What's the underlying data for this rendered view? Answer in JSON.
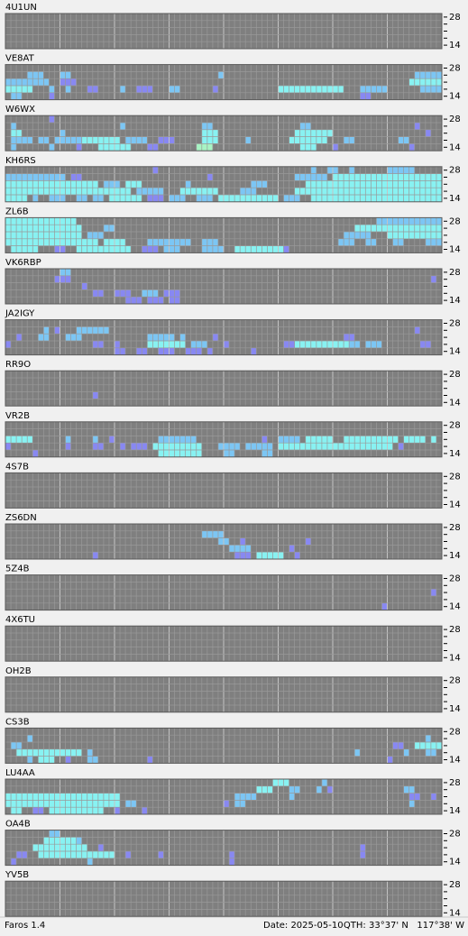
{
  "bands": [
    14,
    18,
    21,
    24,
    28
  ],
  "yticks": [
    14,
    28
  ],
  "minor_ticks": [
    18,
    21,
    24
  ],
  "level_colors": [
    "#8888f2",
    "#7cc6f4",
    "#88f2f2",
    "#a8f4c4"
  ],
  "stations": [
    {
      "name": "4U1UN",
      "runs": []
    },
    {
      "name": "VE8AT",
      "runs": [
        [
          24,
          4,
          6,
          2
        ],
        [
          24,
          10,
          11,
          2
        ],
        [
          24,
          39,
          39,
          2
        ],
        [
          24,
          75,
          79,
          2
        ],
        [
          21,
          0,
          7,
          2
        ],
        [
          21,
          10,
          12,
          1
        ],
        [
          21,
          74,
          79,
          3
        ],
        [
          18,
          0,
          4,
          3
        ],
        [
          18,
          8,
          8,
          2
        ],
        [
          18,
          11,
          11,
          2
        ],
        [
          18,
          15,
          16,
          1
        ],
        [
          18,
          21,
          21,
          2
        ],
        [
          18,
          24,
          26,
          1
        ],
        [
          18,
          30,
          31,
          2
        ],
        [
          18,
          38,
          38,
          1
        ],
        [
          18,
          50,
          61,
          3
        ],
        [
          18,
          65,
          69,
          2
        ],
        [
          18,
          76,
          79,
          2
        ],
        [
          14,
          1,
          2,
          2
        ],
        [
          14,
          8,
          8,
          1
        ],
        [
          14,
          65,
          66,
          1
        ]
      ]
    },
    {
      "name": "W6WX",
      "runs": [
        [
          28,
          8,
          8,
          1
        ],
        [
          24,
          1,
          1,
          2
        ],
        [
          24,
          21,
          21,
          2
        ],
        [
          24,
          36,
          37,
          2
        ],
        [
          24,
          54,
          55,
          2
        ],
        [
          24,
          75,
          75,
          1
        ],
        [
          21,
          1,
          2,
          3
        ],
        [
          21,
          10,
          10,
          2
        ],
        [
          21,
          36,
          38,
          3
        ],
        [
          21,
          53,
          59,
          3
        ],
        [
          21,
          77,
          77,
          1
        ],
        [
          18,
          1,
          4,
          2
        ],
        [
          18,
          6,
          7,
          2
        ],
        [
          18,
          9,
          13,
          2
        ],
        [
          18,
          14,
          20,
          3
        ],
        [
          18,
          22,
          25,
          2
        ],
        [
          18,
          28,
          30,
          1
        ],
        [
          18,
          36,
          38,
          3
        ],
        [
          18,
          44,
          44,
          2
        ],
        [
          18,
          52,
          58,
          3
        ],
        [
          18,
          62,
          63,
          2
        ],
        [
          18,
          72,
          73,
          2
        ],
        [
          14,
          1,
          1,
          2
        ],
        [
          14,
          8,
          8,
          2
        ],
        [
          14,
          13,
          13,
          1
        ],
        [
          14,
          17,
          22,
          3
        ],
        [
          14,
          26,
          27,
          1
        ],
        [
          14,
          35,
          37,
          4
        ],
        [
          14,
          54,
          56,
          3
        ],
        [
          14,
          60,
          60,
          1
        ],
        [
          14,
          74,
          74,
          1
        ]
      ]
    },
    {
      "name": "KH6RS",
      "runs": [
        [
          28,
          27,
          27,
          1
        ],
        [
          28,
          56,
          56,
          2
        ],
        [
          28,
          59,
          60,
          2
        ],
        [
          28,
          63,
          63,
          2
        ],
        [
          28,
          70,
          74,
          2
        ],
        [
          24,
          0,
          10,
          2
        ],
        [
          24,
          12,
          13,
          1
        ],
        [
          24,
          37,
          37,
          1
        ],
        [
          24,
          53,
          58,
          2
        ],
        [
          24,
          60,
          79,
          3
        ],
        [
          21,
          0,
          16,
          3
        ],
        [
          21,
          18,
          20,
          2
        ],
        [
          21,
          22,
          24,
          3
        ],
        [
          21,
          33,
          33,
          2
        ],
        [
          21,
          45,
          47,
          2
        ],
        [
          21,
          55,
          79,
          3
        ],
        [
          18,
          0,
          22,
          3
        ],
        [
          18,
          24,
          28,
          2
        ],
        [
          18,
          32,
          38,
          3
        ],
        [
          18,
          43,
          45,
          2
        ],
        [
          18,
          53,
          79,
          3
        ],
        [
          14,
          0,
          3,
          3
        ],
        [
          14,
          5,
          5,
          2
        ],
        [
          14,
          8,
          10,
          2
        ],
        [
          14,
          13,
          14,
          2
        ],
        [
          14,
          16,
          17,
          2
        ],
        [
          14,
          19,
          24,
          3
        ],
        [
          14,
          26,
          28,
          1
        ],
        [
          14,
          30,
          32,
          2
        ],
        [
          14,
          35,
          37,
          2
        ],
        [
          14,
          39,
          49,
          3
        ],
        [
          14,
          51,
          53,
          2
        ],
        [
          14,
          56,
          79,
          3
        ]
      ]
    },
    {
      "name": "ZL6B",
      "runs": [
        [
          28,
          0,
          12,
          3
        ],
        [
          28,
          68,
          79,
          2
        ],
        [
          24,
          0,
          13,
          3
        ],
        [
          24,
          18,
          19,
          2
        ],
        [
          24,
          64,
          79,
          3
        ],
        [
          21,
          0,
          13,
          3
        ],
        [
          21,
          15,
          17,
          2
        ],
        [
          21,
          62,
          66,
          2
        ],
        [
          21,
          70,
          79,
          3
        ],
        [
          18,
          0,
          16,
          3
        ],
        [
          18,
          18,
          21,
          3
        ],
        [
          18,
          26,
          33,
          2
        ],
        [
          18,
          36,
          38,
          2
        ],
        [
          18,
          61,
          63,
          2
        ],
        [
          18,
          66,
          67,
          2
        ],
        [
          18,
          71,
          72,
          2
        ],
        [
          18,
          77,
          79,
          2
        ],
        [
          14,
          1,
          5,
          3
        ],
        [
          14,
          9,
          10,
          1
        ],
        [
          14,
          13,
          22,
          3
        ],
        [
          14,
          25,
          27,
          1
        ],
        [
          14,
          29,
          31,
          2
        ],
        [
          14,
          36,
          39,
          2
        ],
        [
          14,
          42,
          50,
          3
        ],
        [
          14,
          51,
          51,
          1
        ]
      ]
    },
    {
      "name": "VK6RBP",
      "runs": [
        [
          28,
          10,
          11,
          2
        ],
        [
          24,
          9,
          11,
          1
        ],
        [
          24,
          78,
          78,
          1
        ],
        [
          21,
          14,
          14,
          1
        ],
        [
          18,
          16,
          17,
          1
        ],
        [
          18,
          20,
          22,
          1
        ],
        [
          18,
          25,
          27,
          2
        ],
        [
          18,
          29,
          31,
          1
        ],
        [
          14,
          22,
          24,
          1
        ],
        [
          14,
          26,
          28,
          1
        ],
        [
          14,
          30,
          31,
          1
        ]
      ]
    },
    {
      "name": "JA2IGY",
      "runs": [
        [
          24,
          7,
          7,
          2
        ],
        [
          24,
          9,
          9,
          1
        ],
        [
          24,
          13,
          18,
          2
        ],
        [
          24,
          75,
          75,
          1
        ],
        [
          21,
          2,
          2,
          1
        ],
        [
          21,
          6,
          7,
          2
        ],
        [
          21,
          11,
          13,
          2
        ],
        [
          21,
          26,
          30,
          2
        ],
        [
          21,
          32,
          32,
          2
        ],
        [
          21,
          38,
          38,
          1
        ],
        [
          21,
          62,
          63,
          1
        ],
        [
          18,
          0,
          0,
          1
        ],
        [
          18,
          16,
          17,
          1
        ],
        [
          18,
          20,
          20,
          1
        ],
        [
          18,
          26,
          32,
          3
        ],
        [
          18,
          34,
          36,
          2
        ],
        [
          18,
          40,
          40,
          1
        ],
        [
          18,
          51,
          52,
          1
        ],
        [
          18,
          53,
          62,
          3
        ],
        [
          18,
          63,
          64,
          2
        ],
        [
          18,
          66,
          68,
          2
        ],
        [
          18,
          76,
          77,
          1
        ],
        [
          14,
          20,
          21,
          1
        ],
        [
          14,
          24,
          25,
          1
        ],
        [
          14,
          28,
          30,
          1
        ],
        [
          14,
          33,
          35,
          1
        ],
        [
          14,
          37,
          37,
          1
        ],
        [
          14,
          45,
          45,
          1
        ]
      ]
    },
    {
      "name": "RR9O",
      "runs": [
        [
          18,
          16,
          16,
          1
        ]
      ]
    },
    {
      "name": "VR2B",
      "runs": [
        [
          21,
          0,
          4,
          3
        ],
        [
          21,
          11,
          11,
          2
        ],
        [
          21,
          16,
          16,
          2
        ],
        [
          21,
          19,
          19,
          1
        ],
        [
          21,
          28,
          34,
          2
        ],
        [
          21,
          47,
          47,
          1
        ],
        [
          21,
          50,
          53,
          2
        ],
        [
          21,
          55,
          59,
          3
        ],
        [
          21,
          62,
          71,
          3
        ],
        [
          21,
          73,
          76,
          3
        ],
        [
          21,
          78,
          78,
          3
        ],
        [
          18,
          0,
          0,
          1
        ],
        [
          18,
          11,
          11,
          1
        ],
        [
          18,
          16,
          17,
          1
        ],
        [
          18,
          21,
          21,
          1
        ],
        [
          18,
          23,
          25,
          1
        ],
        [
          18,
          27,
          35,
          3
        ],
        [
          18,
          39,
          42,
          2
        ],
        [
          18,
          44,
          48,
          2
        ],
        [
          18,
          50,
          70,
          3
        ],
        [
          18,
          72,
          72,
          1
        ],
        [
          14,
          5,
          5,
          1
        ],
        [
          14,
          28,
          35,
          3
        ],
        [
          14,
          40,
          41,
          2
        ],
        [
          14,
          47,
          48,
          2
        ]
      ]
    },
    {
      "name": "4S7B",
      "runs": []
    },
    {
      "name": "ZS6DN",
      "runs": [
        [
          24,
          36,
          39,
          2
        ],
        [
          21,
          39,
          40,
          2
        ],
        [
          21,
          43,
          43,
          1
        ],
        [
          21,
          55,
          55,
          1
        ],
        [
          18,
          41,
          44,
          2
        ],
        [
          18,
          52,
          52,
          1
        ],
        [
          14,
          16,
          16,
          1
        ],
        [
          14,
          42,
          44,
          1
        ],
        [
          14,
          46,
          50,
          3
        ],
        [
          14,
          53,
          53,
          1
        ]
      ]
    },
    {
      "name": "5Z4B",
      "runs": [
        [
          21,
          78,
          78,
          1
        ],
        [
          14,
          69,
          69,
          1
        ]
      ]
    },
    {
      "name": "4X6TU",
      "runs": []
    },
    {
      "name": "OH2B",
      "runs": []
    },
    {
      "name": "CS3B",
      "runs": [
        [
          24,
          4,
          4,
          2
        ],
        [
          24,
          77,
          77,
          2
        ],
        [
          21,
          1,
          2,
          2
        ],
        [
          21,
          71,
          72,
          1
        ],
        [
          21,
          75,
          79,
          3
        ],
        [
          18,
          2,
          4,
          3
        ],
        [
          18,
          5,
          13,
          3
        ],
        [
          18,
          15,
          15,
          2
        ],
        [
          18,
          64,
          64,
          2
        ],
        [
          18,
          73,
          73,
          2
        ],
        [
          18,
          77,
          78,
          2
        ],
        [
          14,
          4,
          4,
          2
        ],
        [
          14,
          6,
          8,
          3
        ],
        [
          14,
          11,
          11,
          1
        ],
        [
          14,
          15,
          16,
          2
        ],
        [
          14,
          26,
          26,
          1
        ],
        [
          14,
          70,
          70,
          1
        ]
      ]
    },
    {
      "name": "LU4AA",
      "runs": [
        [
          28,
          49,
          51,
          3
        ],
        [
          28,
          58,
          58,
          2
        ],
        [
          24,
          46,
          48,
          3
        ],
        [
          24,
          52,
          53,
          2
        ],
        [
          24,
          57,
          57,
          2
        ],
        [
          24,
          59,
          59,
          1
        ],
        [
          24,
          73,
          74,
          2
        ],
        [
          21,
          0,
          20,
          3
        ],
        [
          21,
          42,
          45,
          2
        ],
        [
          21,
          52,
          52,
          2
        ],
        [
          21,
          74,
          75,
          1
        ],
        [
          21,
          78,
          78,
          1
        ],
        [
          18,
          0,
          20,
          3
        ],
        [
          18,
          22,
          23,
          2
        ],
        [
          18,
          40,
          40,
          1
        ],
        [
          18,
          42,
          43,
          2
        ],
        [
          18,
          74,
          74,
          2
        ],
        [
          14,
          1,
          2,
          3
        ],
        [
          14,
          5,
          6,
          1
        ],
        [
          14,
          8,
          17,
          3
        ],
        [
          14,
          20,
          20,
          1
        ],
        [
          14,
          25,
          25,
          1
        ]
      ]
    },
    {
      "name": "OA4B",
      "runs": [
        [
          28,
          8,
          9,
          2
        ],
        [
          24,
          7,
          12,
          3
        ],
        [
          24,
          13,
          13,
          2
        ],
        [
          21,
          5,
          14,
          3
        ],
        [
          21,
          17,
          17,
          1
        ],
        [
          21,
          65,
          65,
          1
        ],
        [
          18,
          2,
          3,
          1
        ],
        [
          18,
          6,
          19,
          3
        ],
        [
          18,
          22,
          22,
          1
        ],
        [
          18,
          28,
          28,
          1
        ],
        [
          18,
          41,
          41,
          1
        ],
        [
          18,
          65,
          65,
          1
        ],
        [
          14,
          1,
          1,
          1
        ],
        [
          14,
          15,
          15,
          2
        ],
        [
          14,
          41,
          41,
          1
        ]
      ]
    },
    {
      "name": "YV5B",
      "runs": []
    }
  ],
  "status": {
    "app": "Faros 1.4",
    "date": "Date: 2025-05-10",
    "qth": "QTH: 33°37' N   117°38' W"
  }
}
